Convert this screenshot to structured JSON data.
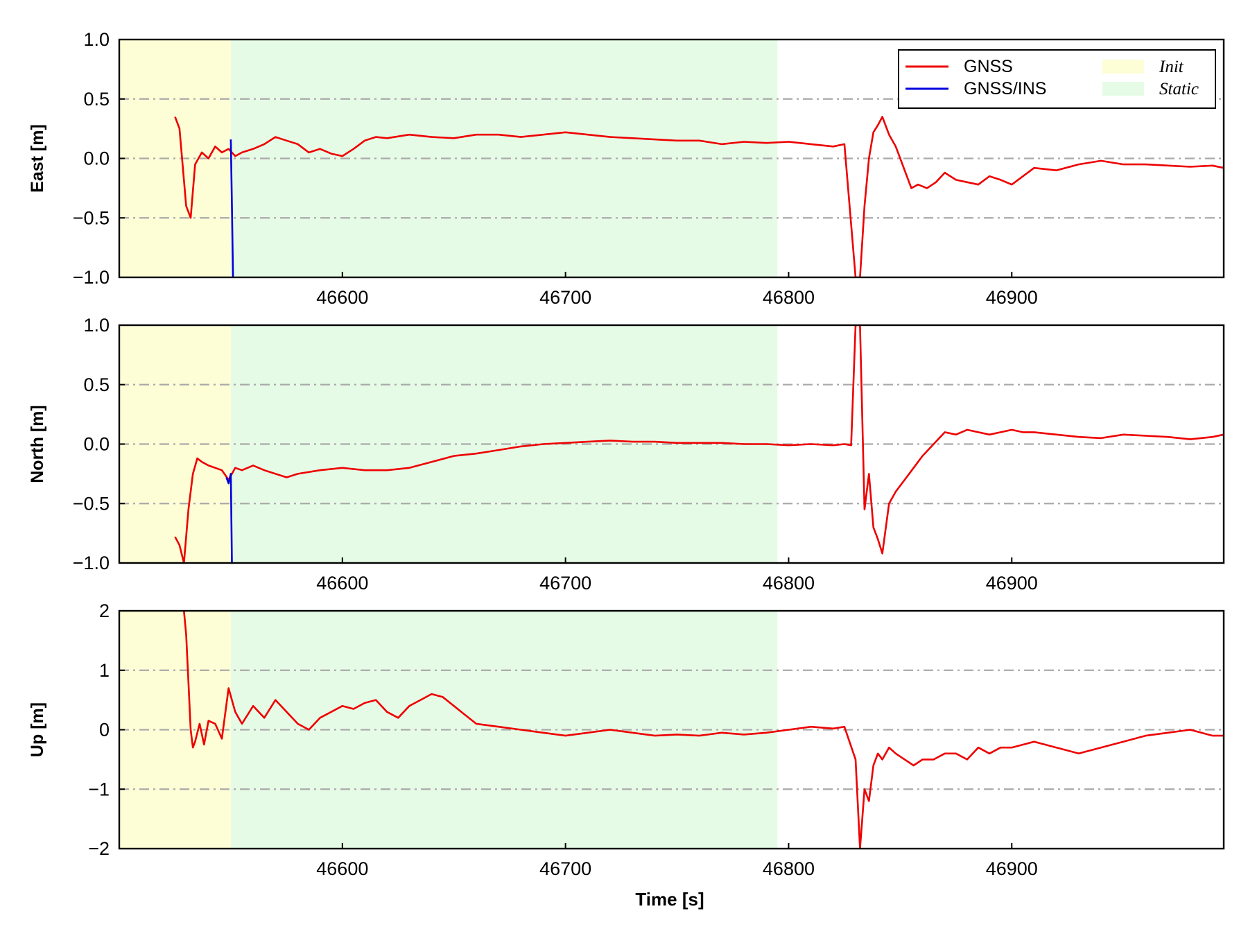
{
  "chart_data": {
    "type": "line",
    "xlabel": "Time [s]",
    "xlim": [
      46500,
      46995
    ],
    "xticks": [
      46600,
      46700,
      46800,
      46900
    ],
    "grid": "horizontal dash-dot",
    "legend_placement": "top-right of first panel",
    "legend": {
      "series": [
        {
          "name": "GNSS",
          "color": "#ee0000"
        },
        {
          "name": "GNSS/INS",
          "color": "#0000dd"
        }
      ],
      "regions": [
        {
          "name": "Init",
          "color": "#fdfdd6"
        },
        {
          "name": "Static",
          "color": "#e6fbe6"
        }
      ]
    },
    "regions": [
      {
        "name": "Init",
        "x": [
          46500,
          46550
        ]
      },
      {
        "name": "Static",
        "x": [
          46550,
          46795
        ]
      }
    ],
    "panels": [
      {
        "ylabel": "East [m]",
        "ylim": [
          -1.0,
          1.0
        ],
        "yticks": [
          -1.0,
          -0.5,
          0.0,
          0.5,
          1.0
        ],
        "ytick_labels": [
          "−1.0",
          "−0.5",
          "0.0",
          "0.5",
          "1.0"
        ],
        "series": [
          {
            "name": "GNSS",
            "x": [
              46525,
              46527,
              46530,
              46532,
              46534,
              46537,
              46540,
              46543,
              46546,
              46549,
              46552,
              46555,
              46560,
              46565,
              46570,
              46575,
              46580,
              46585,
              46590,
              46595,
              46600,
              46605,
              46610,
              46615,
              46620,
              46630,
              46640,
              46650,
              46660,
              46670,
              46680,
              46690,
              46700,
              46710,
              46720,
              46730,
              46740,
              46750,
              46760,
              46770,
              46780,
              46790,
              46800,
              46810,
              46820,
              46825,
              46830,
              46832,
              46834,
              46836,
              46838,
              46840,
              46842,
              46845,
              46848,
              46850,
              46852,
              46855,
              46858,
              46862,
              46866,
              46870,
              46875,
              46880,
              46885,
              46890,
              46895,
              46900,
              46905,
              46910,
              46920,
              46930,
              46940,
              46950,
              46960,
              46970,
              46980,
              46990,
              46995
            ],
            "y": [
              0.35,
              0.25,
              -0.4,
              -0.5,
              -0.05,
              0.05,
              0.0,
              0.1,
              0.05,
              0.08,
              0.02,
              0.05,
              0.08,
              0.12,
              0.18,
              0.15,
              0.12,
              0.05,
              0.08,
              0.04,
              0.02,
              0.08,
              0.15,
              0.18,
              0.17,
              0.2,
              0.18,
              0.17,
              0.2,
              0.2,
              0.18,
              0.2,
              0.22,
              0.2,
              0.18,
              0.17,
              0.16,
              0.15,
              0.15,
              0.12,
              0.14,
              0.13,
              0.14,
              0.12,
              0.1,
              0.12,
              -1.0,
              -1.0,
              -0.4,
              0.0,
              0.22,
              0.28,
              0.35,
              0.2,
              0.1,
              0.0,
              -0.1,
              -0.25,
              -0.22,
              -0.25,
              -0.2,
              -0.12,
              -0.18,
              -0.2,
              -0.22,
              -0.15,
              -0.18,
              -0.22,
              -0.15,
              -0.08,
              -0.1,
              -0.05,
              -0.02,
              -0.05,
              -0.05,
              -0.06,
              -0.07,
              -0.06,
              -0.08
            ]
          },
          {
            "name": "GNSS/INS",
            "x": [
              46550,
              46550.5,
              46551
            ],
            "y": [
              0.16,
              -0.4,
              -1.0
            ]
          }
        ]
      },
      {
        "ylabel": "North [m]",
        "ylim": [
          -1.0,
          1.0
        ],
        "yticks": [
          -1.0,
          -0.5,
          0.0,
          0.5,
          1.0
        ],
        "ytick_labels": [
          "−1.0",
          "−0.5",
          "0.0",
          "0.5",
          "1.0"
        ],
        "series": [
          {
            "name": "GNSS",
            "x": [
              46525,
              46527,
              46529,
              46531,
              46533,
              46535,
              46537,
              46540,
              46543,
              46546,
              46549,
              46552,
              46555,
              46560,
              46565,
              46570,
              46575,
              46580,
              46590,
              46600,
              46610,
              46620,
              46630,
              46640,
              46650,
              46660,
              46670,
              46680,
              46690,
              46700,
              46710,
              46720,
              46730,
              46740,
              46750,
              46760,
              46770,
              46780,
              46790,
              46800,
              46810,
              46820,
              46825,
              46828,
              46830,
              46832,
              46834,
              46836,
              46838,
              46840,
              46842,
              46845,
              46848,
              46852,
              46856,
              46860,
              46865,
              46870,
              46875,
              46880,
              46885,
              46890,
              46895,
              46900,
              46905,
              46910,
              46920,
              46930,
              46940,
              46950,
              46960,
              46970,
              46980,
              46990,
              46995
            ],
            "y": [
              -0.78,
              -0.85,
              -1.0,
              -0.55,
              -0.25,
              -0.12,
              -0.15,
              -0.18,
              -0.2,
              -0.22,
              -0.3,
              -0.2,
              -0.22,
              -0.18,
              -0.22,
              -0.25,
              -0.28,
              -0.25,
              -0.22,
              -0.2,
              -0.22,
              -0.22,
              -0.2,
              -0.15,
              -0.1,
              -0.08,
              -0.05,
              -0.02,
              0.0,
              0.01,
              0.02,
              0.03,
              0.02,
              0.02,
              0.01,
              0.01,
              0.01,
              0.0,
              0.0,
              -0.01,
              0.0,
              -0.01,
              0.0,
              -0.01,
              1.0,
              1.0,
              -0.55,
              -0.25,
              -0.7,
              -0.8,
              -0.92,
              -0.5,
              -0.4,
              -0.3,
              -0.2,
              -0.1,
              0.0,
              0.1,
              0.08,
              0.12,
              0.1,
              0.08,
              0.1,
              0.12,
              0.1,
              0.1,
              0.08,
              0.06,
              0.05,
              0.08,
              0.07,
              0.06,
              0.04,
              0.06,
              0.08
            ]
          },
          {
            "name": "GNSS/INS",
            "x": [
              46548,
              46549,
              46550,
              46550.5
            ],
            "y": [
              -0.28,
              -0.33,
              -0.25,
              -1.0
            ]
          }
        ]
      },
      {
        "ylabel": "Up [m]",
        "ylim": [
          -2,
          2
        ],
        "yticks": [
          -2,
          -1,
          0,
          1,
          2
        ],
        "ytick_labels": [
          "−2",
          "−1",
          "0",
          "1",
          "2"
        ],
        "series": [
          {
            "name": "GNSS",
            "x": [
              46529,
              46530,
              46531,
              46532,
              46533,
              46534,
              46536,
              46538,
              46540,
              46543,
              46546,
              46549,
              46552,
              46555,
              46560,
              46565,
              46570,
              46575,
              46580,
              46585,
              46590,
              46595,
              46600,
              46605,
              46610,
              46615,
              46620,
              46625,
              46630,
              46635,
              46640,
              46645,
              46650,
              46655,
              46660,
              46670,
              46680,
              46690,
              46700,
              46710,
              46720,
              46730,
              46740,
              46750,
              46760,
              46770,
              46780,
              46790,
              46800,
              46810,
              46820,
              46825,
              46830,
              46832,
              46834,
              46836,
              46838,
              46840,
              46842,
              46845,
              46848,
              46852,
              46856,
              46860,
              46865,
              46870,
              46875,
              46880,
              46885,
              46890,
              46895,
              46900,
              46910,
              46920,
              46930,
              46940,
              46950,
              46960,
              46970,
              46980,
              46990,
              46995
            ],
            "y": [
              2.0,
              1.6,
              0.8,
              0.0,
              -0.3,
              -0.2,
              0.1,
              -0.25,
              0.15,
              0.1,
              -0.15,
              0.7,
              0.3,
              0.1,
              0.4,
              0.2,
              0.5,
              0.3,
              0.1,
              0.0,
              0.2,
              0.3,
              0.4,
              0.35,
              0.45,
              0.5,
              0.3,
              0.2,
              0.4,
              0.5,
              0.6,
              0.55,
              0.4,
              0.25,
              0.1,
              0.05,
              0.0,
              -0.05,
              -0.1,
              -0.05,
              0.0,
              -0.05,
              -0.1,
              -0.08,
              -0.1,
              -0.05,
              -0.08,
              -0.05,
              0.0,
              0.05,
              0.02,
              0.05,
              -0.5,
              -2.0,
              -1.0,
              -1.2,
              -0.6,
              -0.4,
              -0.5,
              -0.3,
              -0.4,
              -0.5,
              -0.6,
              -0.5,
              -0.5,
              -0.4,
              -0.4,
              -0.5,
              -0.3,
              -0.4,
              -0.3,
              -0.3,
              -0.2,
              -0.3,
              -0.4,
              -0.3,
              -0.2,
              -0.1,
              -0.05,
              0.0,
              -0.1,
              -0.1
            ]
          }
        ]
      }
    ]
  }
}
